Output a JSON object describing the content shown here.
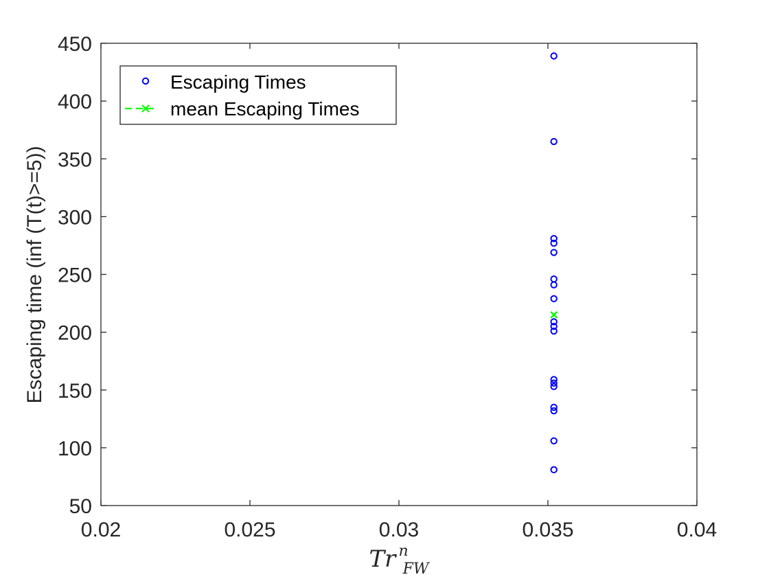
{
  "chart_data": {
    "type": "scatter",
    "xlabel": {
      "base": "Tr",
      "sup": "n",
      "sub": "FW"
    },
    "ylabel": "Escaping time (inf (T(t)>=5))",
    "xlim": [
      0.02,
      0.04
    ],
    "ylim": [
      50,
      450
    ],
    "xticks": [
      0.02,
      0.025,
      0.03,
      0.035,
      0.04
    ],
    "xtick_labels": [
      "0.02",
      "0.025",
      "0.03",
      "0.035",
      "0.04"
    ],
    "yticks": [
      50,
      100,
      150,
      200,
      250,
      300,
      350,
      400,
      450
    ],
    "ytick_labels": [
      "50",
      "100",
      "150",
      "200",
      "250",
      "300",
      "350",
      "400",
      "450"
    ],
    "grid": false,
    "legend_position": "top-left",
    "series": [
      {
        "name": "Escaping Times",
        "marker": "circle",
        "color": "#0000ff",
        "points": [
          {
            "x": 0.0352,
            "y": 439
          },
          {
            "x": 0.0352,
            "y": 365
          },
          {
            "x": 0.0352,
            "y": 281
          },
          {
            "x": 0.0352,
            "y": 277
          },
          {
            "x": 0.0352,
            "y": 269
          },
          {
            "x": 0.0352,
            "y": 246
          },
          {
            "x": 0.0352,
            "y": 241
          },
          {
            "x": 0.0352,
            "y": 229
          },
          {
            "x": 0.0352,
            "y": 209
          },
          {
            "x": 0.0352,
            "y": 205
          },
          {
            "x": 0.0352,
            "y": 201
          },
          {
            "x": 0.0352,
            "y": 159
          },
          {
            "x": 0.0352,
            "y": 156
          },
          {
            "x": 0.0352,
            "y": 153
          },
          {
            "x": 0.0352,
            "y": 135
          },
          {
            "x": 0.0352,
            "y": 132
          },
          {
            "x": 0.0352,
            "y": 106
          },
          {
            "x": 0.0352,
            "y": 81
          }
        ]
      },
      {
        "name": "mean Escaping Times",
        "marker": "x",
        "line": "dashed",
        "color": "#00ff00",
        "points": [
          {
            "x": 0.0352,
            "y": 215
          }
        ]
      }
    ]
  }
}
